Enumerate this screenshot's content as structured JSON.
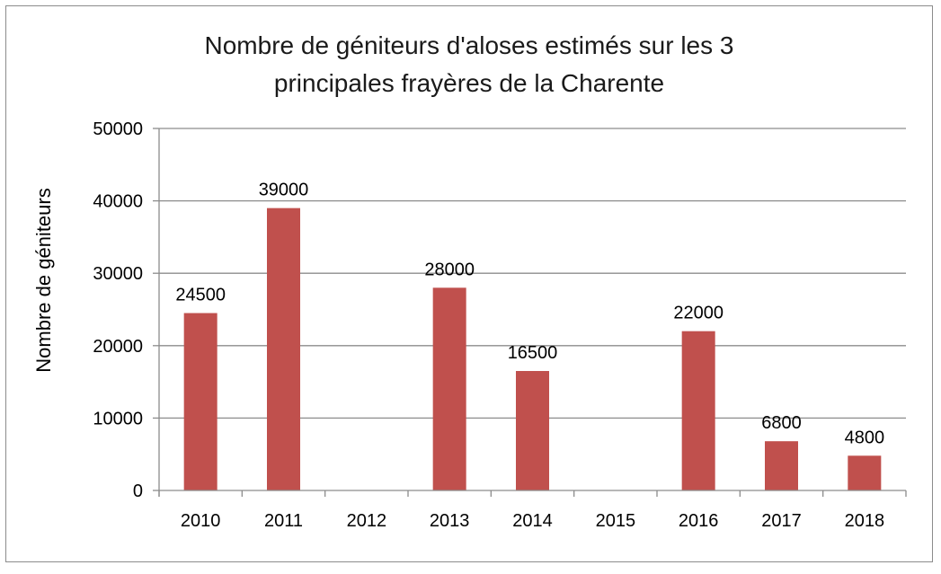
{
  "chart_data": {
    "type": "bar",
    "title_lines": [
      "Nombre de géniteurs d'aloses estimés sur les 3",
      "principales frayères de la Charente"
    ],
    "ylabel": "Nombre de géniteurs",
    "xlabel": "",
    "categories": [
      "2010",
      "2011",
      "2012",
      "2013",
      "2014",
      "2015",
      "2016",
      "2017",
      "2018"
    ],
    "values": [
      24500,
      39000,
      null,
      28000,
      16500,
      null,
      22000,
      6800,
      4800
    ],
    "data_labels": [
      "24500",
      "39000",
      "",
      "28000",
      "16500",
      "",
      "22000",
      "6800",
      "4800"
    ],
    "ylim": [
      0,
      50000
    ],
    "yticks": [
      0,
      10000,
      20000,
      30000,
      40000,
      50000
    ],
    "ytick_labels": [
      "0",
      "10000",
      "20000",
      "30000",
      "40000",
      "50000"
    ],
    "grid": true,
    "legend": "none",
    "bar_color": "#c0504d",
    "grid_color": "#8c8c8c"
  }
}
